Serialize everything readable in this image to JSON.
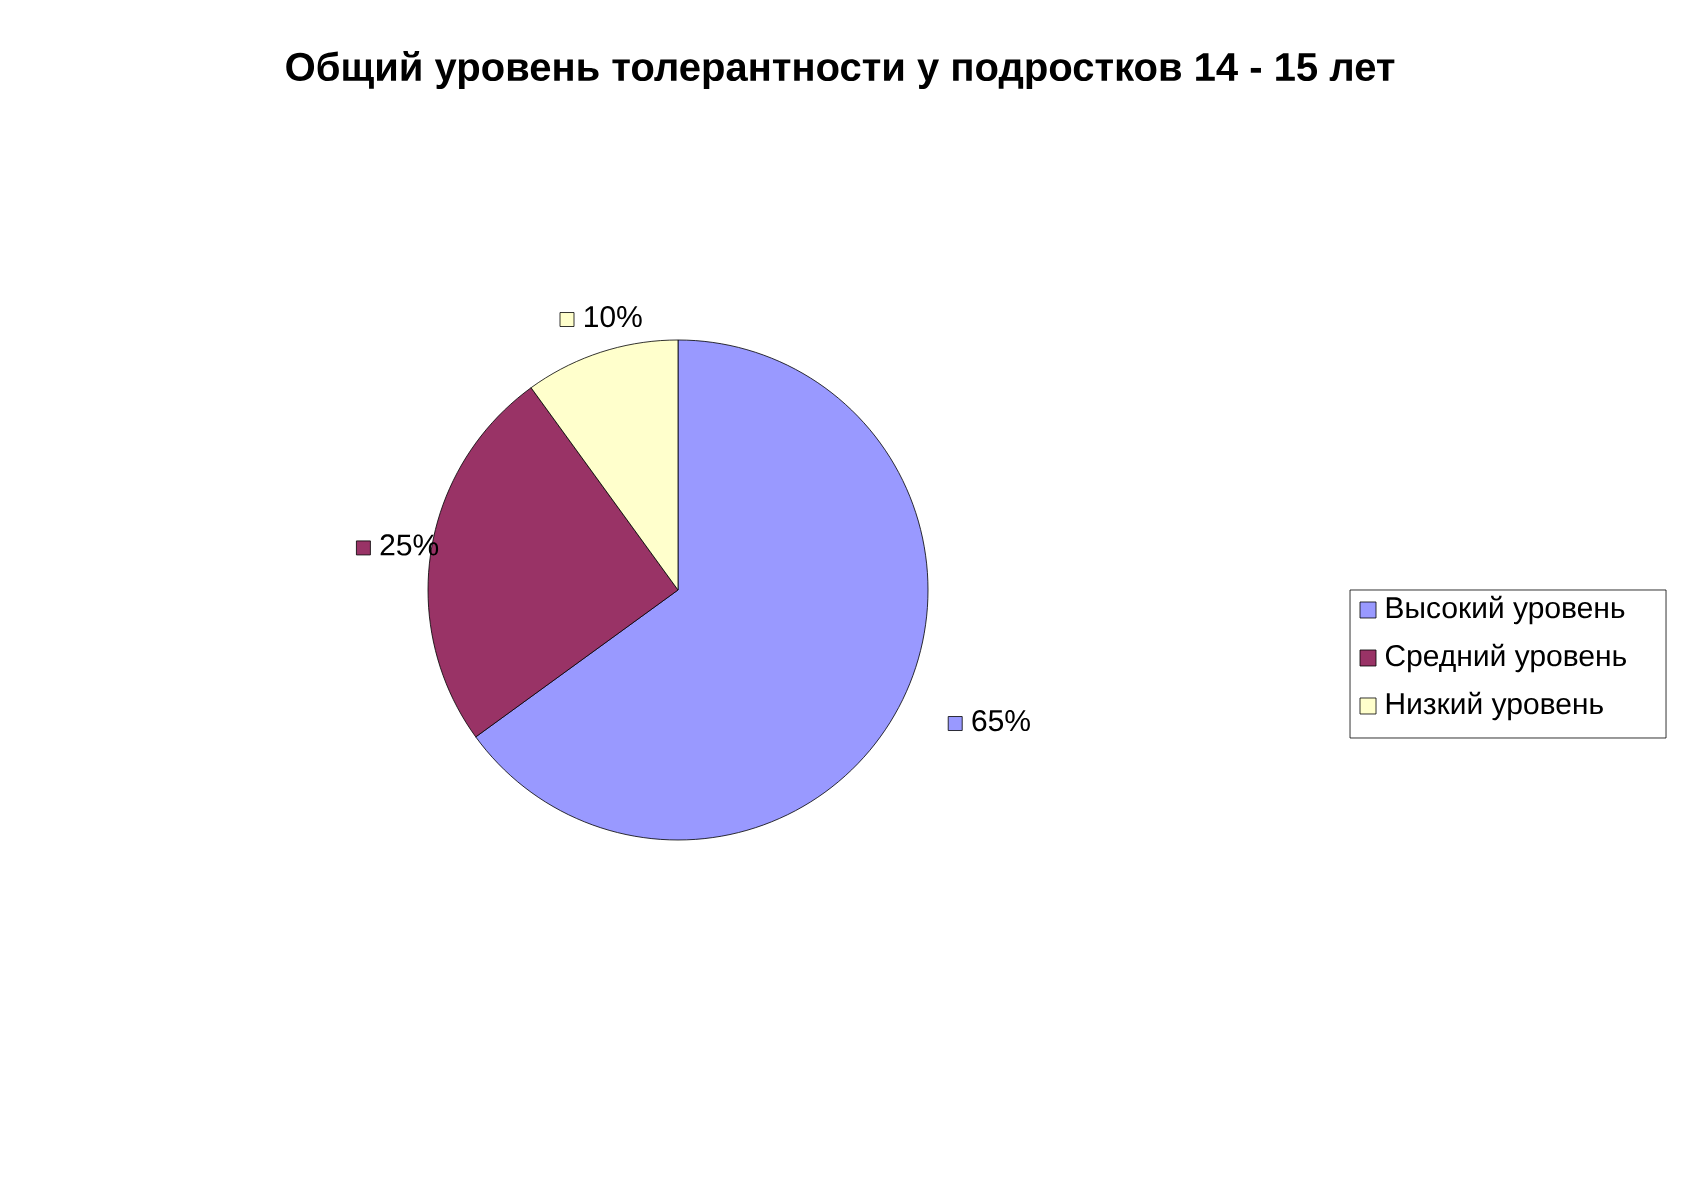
{
  "chart_data": {
    "type": "pie",
    "title": "Общий уровень толерантности у подростков 14 - 15 лет",
    "categories": [
      "Высокий уровень",
      "Средний уровень",
      "Низкий уровень"
    ],
    "values": [
      65,
      25,
      10
    ],
    "value_labels": [
      "65%",
      "25%",
      "10%"
    ],
    "colors": [
      "#9999ff",
      "#993366",
      "#ffffcc"
    ],
    "legend": "right"
  }
}
